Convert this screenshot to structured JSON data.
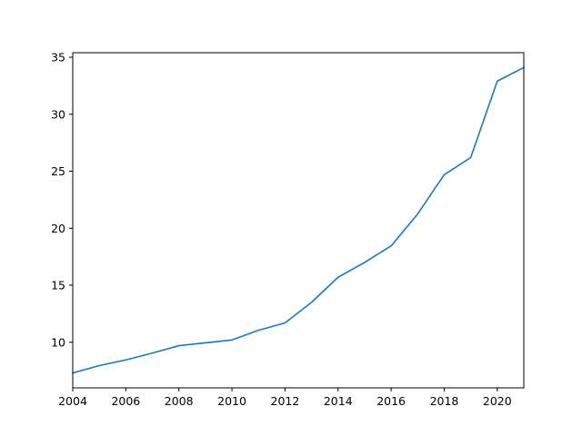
{
  "chart_data": {
    "type": "line",
    "title": "",
    "xlabel": "",
    "ylabel": "",
    "xlim": [
      2004,
      2021
    ],
    "ylim": [
      6.0,
      35.4
    ],
    "grid": false,
    "legend": "none",
    "x_ticks": [
      2004,
      2006,
      2008,
      2010,
      2012,
      2014,
      2016,
      2018,
      2020
    ],
    "x_tick_labels": [
      "2004",
      "2006",
      "2008",
      "2010",
      "2012",
      "2014",
      "2016",
      "2018",
      "2020"
    ],
    "y_ticks": [
      10,
      15,
      20,
      25,
      30,
      35
    ],
    "y_tick_labels": [
      "10",
      "15",
      "20",
      "25",
      "30",
      "35"
    ],
    "series": [
      {
        "color": "#1f77b4",
        "x": [
          2004,
          2005,
          2006,
          2007,
          2008,
          2009,
          2010,
          2011,
          2012,
          2013,
          2014,
          2015,
          2016,
          2017,
          2018,
          2019,
          2020,
          2021
        ],
        "y": [
          7.3,
          7.95,
          8.45,
          9.05,
          9.7,
          9.95,
          10.2,
          11.05,
          11.7,
          13.5,
          15.7,
          17.0,
          18.45,
          21.25,
          24.7,
          26.2,
          32.9,
          34.1
        ]
      }
    ]
  }
}
